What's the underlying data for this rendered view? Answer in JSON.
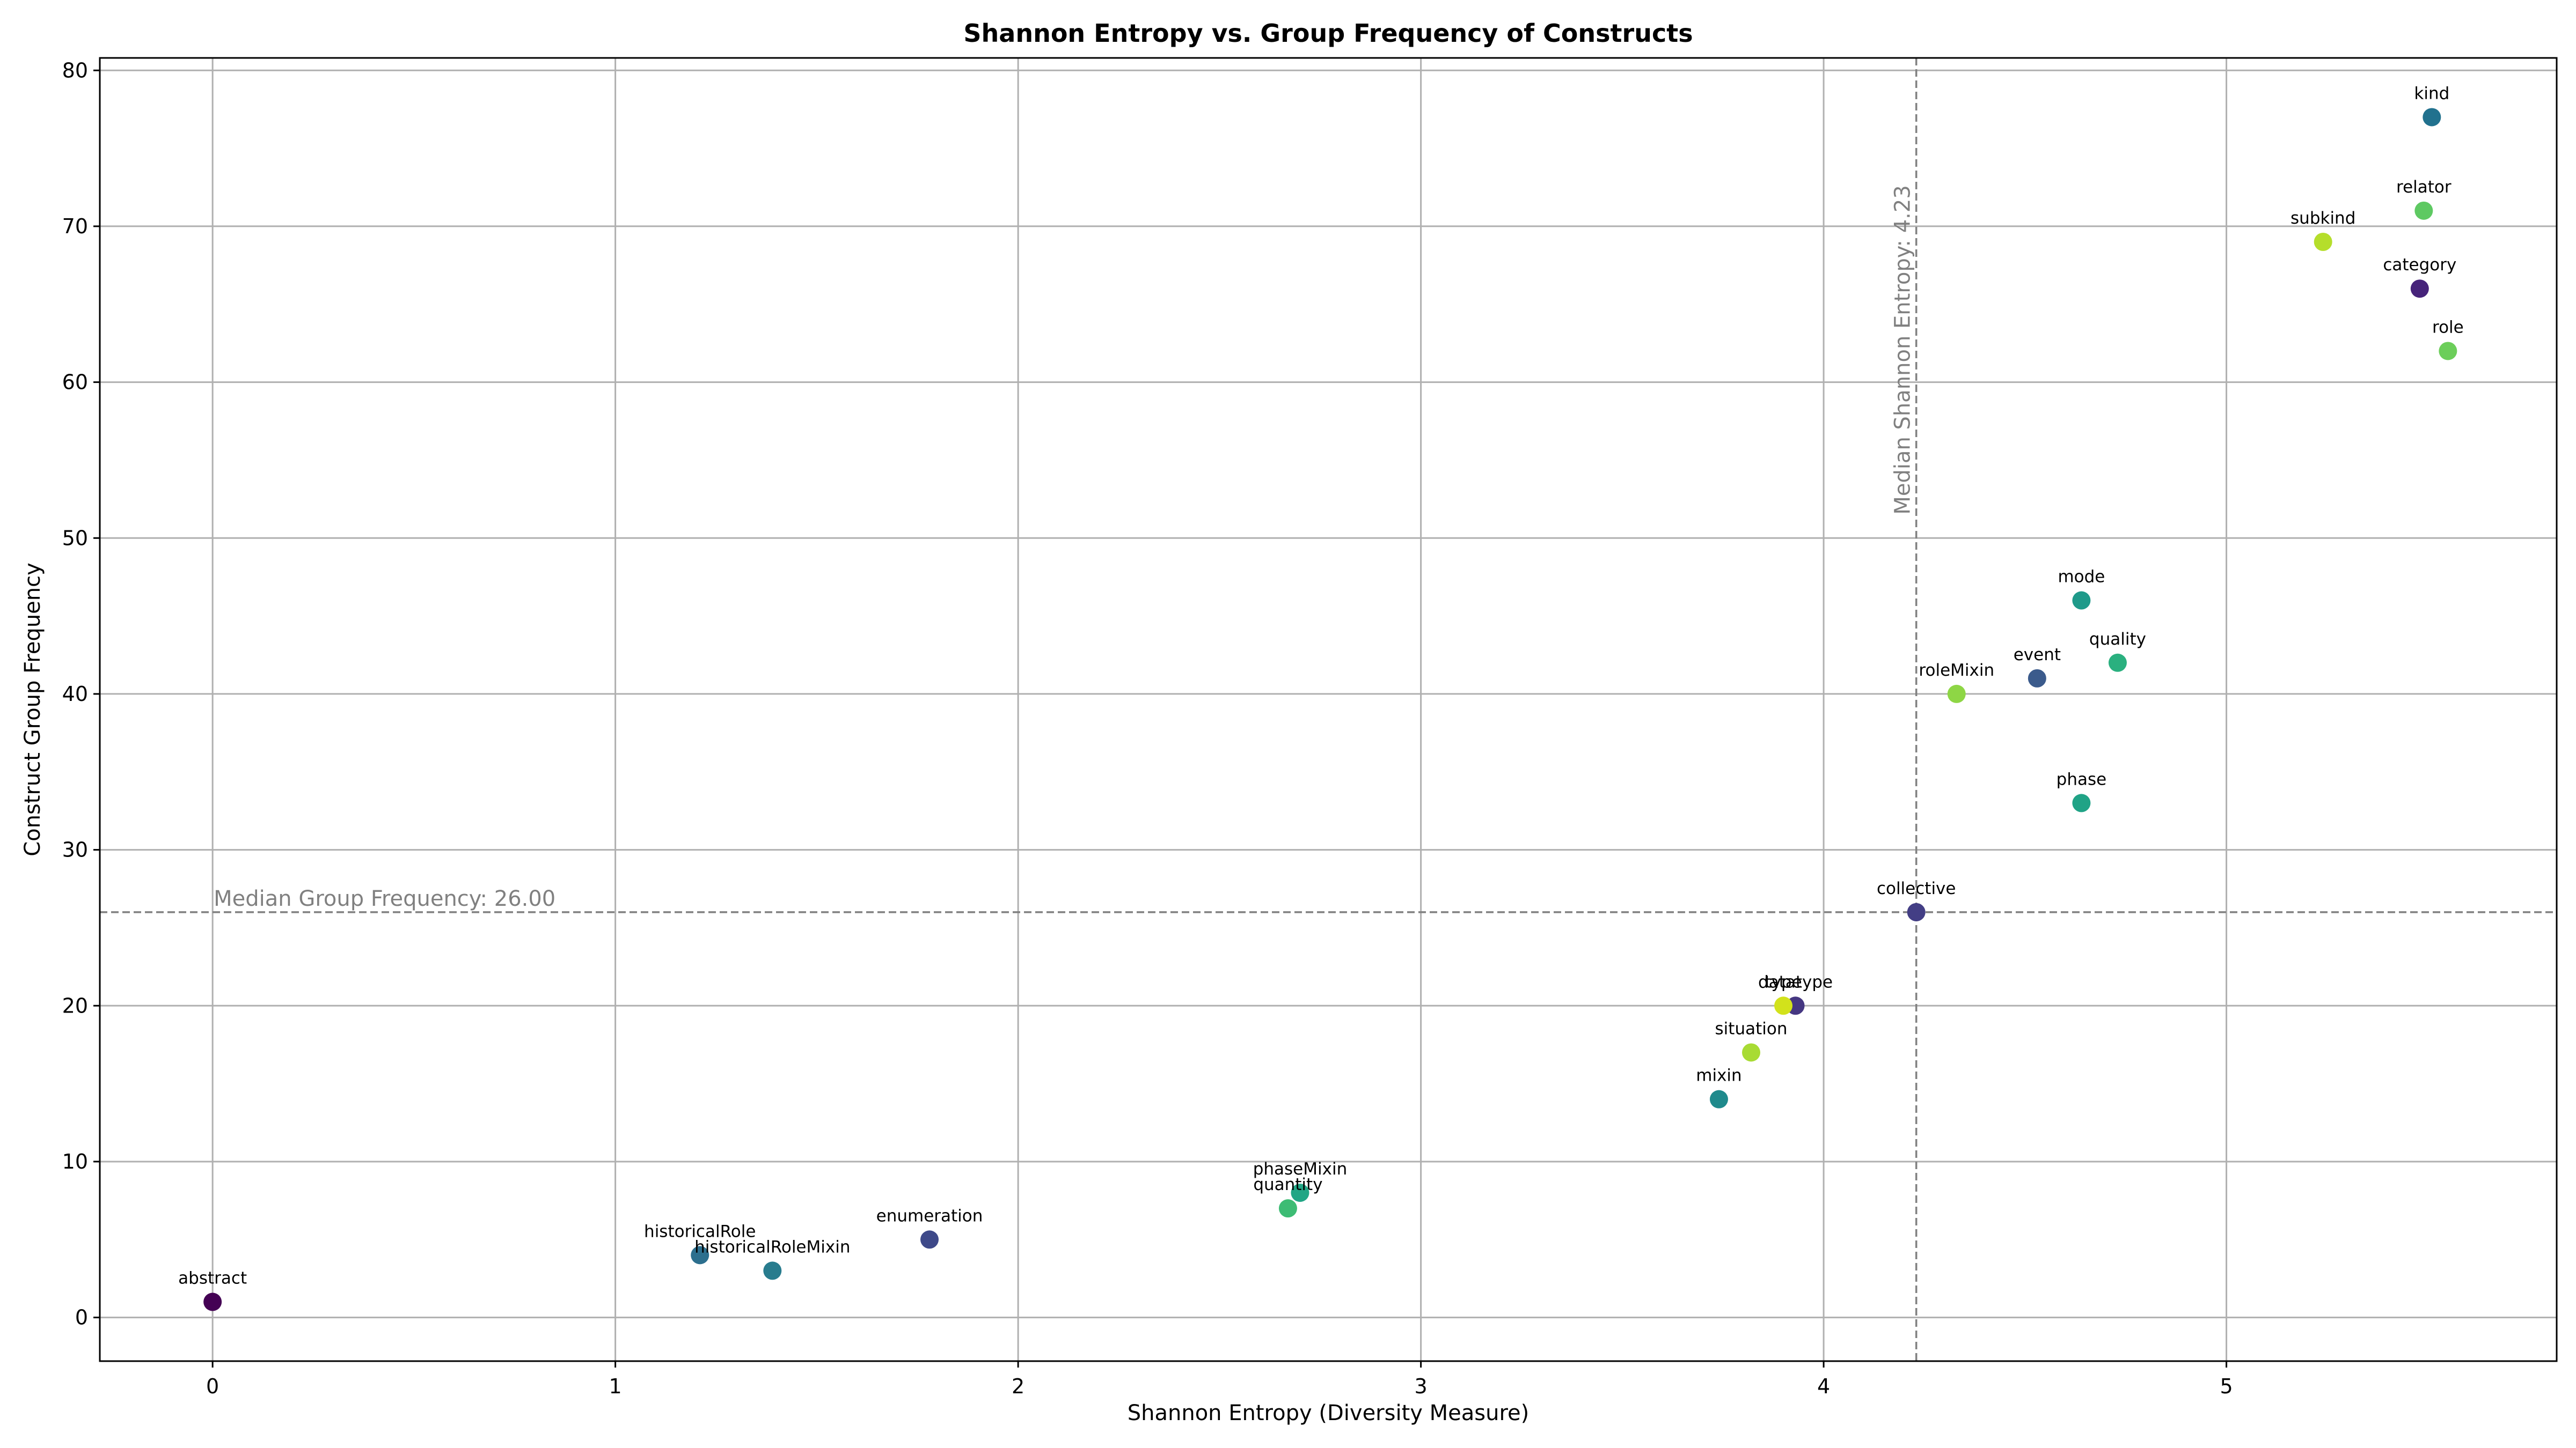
{
  "chart_data": {
    "type": "scatter",
    "title": "Shannon Entropy vs. Group Frequency of Constructs",
    "xlabel": "Shannon Entropy (Diversity Measure)",
    "ylabel": "Construct Group Frequency",
    "xlim": [
      -0.28,
      5.82
    ],
    "ylim": [
      -2.8,
      80.8
    ],
    "xticks": [
      0,
      1,
      2,
      3,
      4,
      5
    ],
    "yticks": [
      0,
      10,
      20,
      30,
      40,
      50,
      60,
      70,
      80
    ],
    "grid": true,
    "median_x": {
      "value": 4.23,
      "label": "Median Shannon Entropy: 4.23"
    },
    "median_y": {
      "value": 26.0,
      "label": "Median Group Frequency: 26.00"
    },
    "points": [
      {
        "name": "kind",
        "x": 5.51,
        "y": 77,
        "color": "#21718e"
      },
      {
        "name": "relator",
        "x": 5.49,
        "y": 71,
        "color": "#5ec962"
      },
      {
        "name": "subkind",
        "x": 5.24,
        "y": 69,
        "color": "#b5de2b"
      },
      {
        "name": "category",
        "x": 5.48,
        "y": 66,
        "color": "#46237a"
      },
      {
        "name": "role",
        "x": 5.55,
        "y": 62,
        "color": "#6cce5a"
      },
      {
        "name": "mode",
        "x": 4.64,
        "y": 46,
        "color": "#1f9a8a"
      },
      {
        "name": "quality",
        "x": 4.73,
        "y": 42,
        "color": "#2ab07f"
      },
      {
        "name": "event",
        "x": 4.53,
        "y": 41,
        "color": "#3b5b8c"
      },
      {
        "name": "roleMixin",
        "x": 4.33,
        "y": 40,
        "color": "#8ed645"
      },
      {
        "name": "phase",
        "x": 4.64,
        "y": 33,
        "color": "#20a386"
      },
      {
        "name": "collective",
        "x": 4.23,
        "y": 26,
        "color": "#433e85"
      },
      {
        "name": "datatype",
        "x": 3.93,
        "y": 20,
        "color": "#453781"
      },
      {
        "name": "type",
        "x": 3.9,
        "y": 20,
        "color": "#d2e21b"
      },
      {
        "name": "situation",
        "x": 3.82,
        "y": 17,
        "color": "#a8db34"
      },
      {
        "name": "mixin",
        "x": 3.74,
        "y": 14,
        "color": "#1f8a8c"
      },
      {
        "name": "phaseMixin",
        "x": 2.7,
        "y": 8,
        "color": "#21a685"
      },
      {
        "name": "quantity",
        "x": 2.67,
        "y": 7,
        "color": "#3dbc74"
      },
      {
        "name": "enumeration",
        "x": 1.78,
        "y": 5,
        "color": "#3e4989"
      },
      {
        "name": "historicalRole",
        "x": 1.21,
        "y": 4,
        "color": "#2c6f8e"
      },
      {
        "name": "historicalRoleMixin",
        "x": 1.39,
        "y": 3,
        "color": "#287c8e"
      },
      {
        "name": "abstract",
        "x": 0.0,
        "y": 1,
        "color": "#440154"
      }
    ]
  }
}
